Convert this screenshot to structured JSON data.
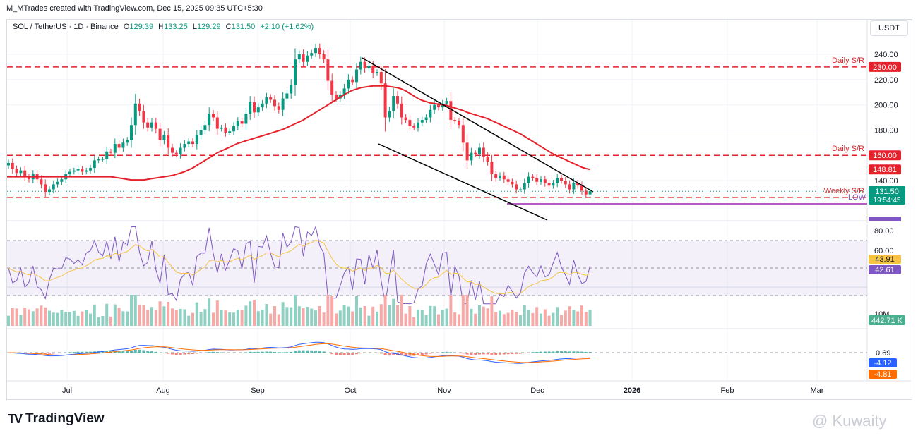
{
  "header": {
    "attribution": "M_MTrades created with TradingView.com, Dec 15, 2025 09:35 UTC+5:30"
  },
  "legend": {
    "symbol": "SOL / TetherUS · 1D · Binance",
    "o_label": "O",
    "o": "129.39",
    "h_label": "H",
    "h": "133.25",
    "l_label": "L",
    "l": "129.29",
    "c_label": "C",
    "c": "131.50",
    "change": "+2.10 (+1.62%)"
  },
  "currency_button": "USDT",
  "footer": {
    "brand": "TradingView",
    "watermark": "@ Kuwaity"
  },
  "colors": {
    "up": "#089981",
    "down": "#f23645",
    "ma": "#e5212b",
    "rsi": "#7e57c2",
    "rsi_ma": "#f6c343",
    "macd": "#2962ff",
    "signal": "#ff6d00",
    "grid": "#f0f3fa"
  },
  "chart_data": {
    "type": "candlestick",
    "x_ticks": [
      "Jul",
      "Aug",
      "Sep",
      "Oct",
      "Nov",
      "Dec",
      "2026",
      "Feb",
      "Mar"
    ],
    "y_ticks": [
      "240.00",
      "220.00",
      "200.00",
      "180.00",
      "140.00"
    ],
    "ylim": [
      110,
      252
    ],
    "closes": [
      154,
      149,
      146,
      148,
      143,
      141,
      145,
      141,
      137,
      131,
      133,
      137,
      139,
      141,
      145,
      147,
      148,
      149,
      147,
      148,
      150,
      156,
      157,
      157,
      163,
      162,
      169,
      166,
      170,
      172,
      184,
      201,
      195,
      186,
      182,
      186,
      181,
      172,
      176,
      166,
      162,
      161,
      166,
      169,
      171,
      169,
      176,
      180,
      184,
      193,
      190,
      181,
      182,
      178,
      179,
      183,
      187,
      185,
      193,
      202,
      194,
      198,
      201,
      206,
      204,
      199,
      196,
      205,
      209,
      216,
      236,
      240,
      234,
      239,
      241,
      245,
      240,
      236,
      219,
      208,
      205,
      208,
      213,
      220,
      218,
      228,
      234,
      229,
      231,
      225,
      226,
      217,
      190,
      195,
      207,
      201,
      190,
      188,
      183,
      182,
      186,
      188,
      190,
      196,
      200,
      198,
      201,
      203,
      188,
      187,
      184,
      170,
      156,
      162,
      161,
      166,
      159,
      155,
      145,
      142,
      144,
      141,
      139,
      137,
      133,
      133,
      138,
      143,
      142,
      139,
      141,
      138,
      136,
      138,
      142,
      140,
      137,
      133,
      138,
      136,
      132,
      129,
      131.5
    ],
    "ma_50": {
      "label": "148.81",
      "values": [
        143,
        142.5,
        142,
        141.5,
        141,
        140.5,
        140.5,
        140.5,
        140.5,
        141,
        141.5,
        142,
        142.5,
        143,
        143.5,
        144,
        145,
        146,
        147,
        148.5,
        150,
        152,
        154,
        156,
        158,
        160,
        162,
        163.5,
        165,
        166.5,
        168,
        169.5,
        170.5,
        171.5,
        172.5,
        173.5,
        174.5,
        175.5,
        176.5,
        177.5,
        178.5,
        179.5,
        180.5,
        182,
        183.5,
        185,
        186.5,
        188,
        190,
        192,
        194,
        196,
        198,
        200,
        202,
        204,
        206,
        208,
        210,
        211.5,
        212.5,
        213.5,
        214,
        214.5,
        215,
        215,
        215,
        215,
        214.5,
        214,
        213.5,
        212.5,
        211,
        209,
        207,
        205,
        203.5,
        202.5,
        201.5,
        201,
        200.5,
        200,
        199.5,
        198.5,
        197.5,
        196.5,
        195.5,
        194,
        193,
        192,
        191,
        190,
        189,
        187.5,
        186,
        184.5,
        183,
        181.5,
        180,
        178.5,
        177,
        175,
        173,
        171,
        169,
        167,
        165,
        163,
        161,
        159.5,
        158,
        156.5,
        155,
        153.5,
        152,
        150.5,
        149.5,
        148.81
      ]
    },
    "levels": [
      {
        "label": "Daily S/R",
        "value": "230.00",
        "price": 230
      },
      {
        "label": "Daily S/R",
        "value": "160.00",
        "price": 160
      },
      {
        "label": "Weekly S/R",
        "value": "126.65",
        "price": 126.65
      }
    ],
    "low_label": "LOW",
    "low_value": "121.66",
    "price_tag": {
      "value": "131.50",
      "countdown": "19:54:45"
    },
    "rsi": {
      "ticks": [
        "80.00",
        "60.00"
      ],
      "rsi_value": "42.61",
      "ma_value": "43.91"
    },
    "volume": {
      "label": "10M",
      "value": "442.71 K"
    },
    "macd": {
      "hist": "0.69",
      "macd": "-4.12",
      "signal": "-4.81"
    }
  }
}
